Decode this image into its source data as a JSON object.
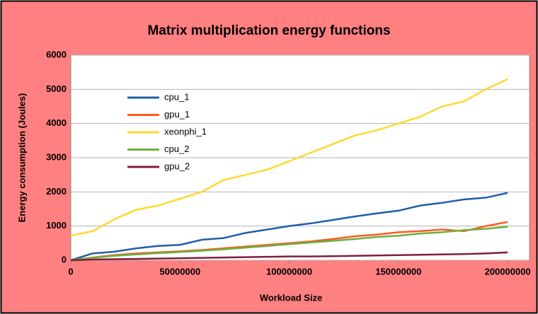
{
  "chart_data": {
    "type": "line",
    "title": "Matrix multiplication energy functions",
    "xlabel": "Workload Size",
    "ylabel": "Energy consumption (Joules)",
    "x": [
      0,
      10000000,
      20000000,
      30000000,
      40000000,
      50000000,
      60000000,
      70000000,
      80000000,
      90000000,
      100000000,
      110000000,
      120000000,
      130000000,
      140000000,
      150000000,
      160000000,
      170000000,
      180000000,
      190000000,
      200000000
    ],
    "series": [
      {
        "name": "cpu_1",
        "color": "#1f5fa8",
        "values": [
          0,
          200,
          250,
          350,
          420,
          450,
          600,
          650,
          800,
          900,
          1000,
          1080,
          1180,
          1280,
          1370,
          1450,
          1600,
          1680,
          1780,
          1830,
          1970
        ]
      },
      {
        "name": "gpu_1",
        "color": "#ff5a1e",
        "values": [
          0,
          80,
          150,
          200,
          230,
          260,
          300,
          350,
          400,
          450,
          500,
          550,
          620,
          700,
          750,
          820,
          850,
          900,
          850,
          1000,
          1120
        ]
      },
      {
        "name": "xeonphi_1",
        "color": "#ffd92e",
        "values": [
          720,
          850,
          1200,
          1480,
          1600,
          1800,
          2000,
          2350,
          2500,
          2650,
          2900,
          3150,
          3400,
          3650,
          3800,
          4000,
          4200,
          4500,
          4650,
          5000,
          5300
        ]
      },
      {
        "name": "cpu_2",
        "color": "#6bb040",
        "values": [
          0,
          70,
          130,
          170,
          210,
          240,
          280,
          320,
          370,
          420,
          470,
          520,
          570,
          620,
          680,
          720,
          780,
          820,
          880,
          920,
          980
        ]
      },
      {
        "name": "gpu_2",
        "color": "#7e1f3e",
        "values": [
          0,
          20,
          30,
          40,
          50,
          60,
          70,
          80,
          90,
          100,
          110,
          110,
          120,
          130,
          140,
          150,
          160,
          170,
          180,
          200,
          230
        ]
      }
    ],
    "xlim": [
      0,
      210000000
    ],
    "xticks": [
      0,
      50000000,
      100000000,
      150000000,
      200000000
    ],
    "ylim": [
      0,
      6000
    ],
    "yticks": [
      0,
      1000,
      2000,
      3000,
      4000,
      5000,
      6000
    ],
    "grid": true,
    "legend": "upper left"
  }
}
